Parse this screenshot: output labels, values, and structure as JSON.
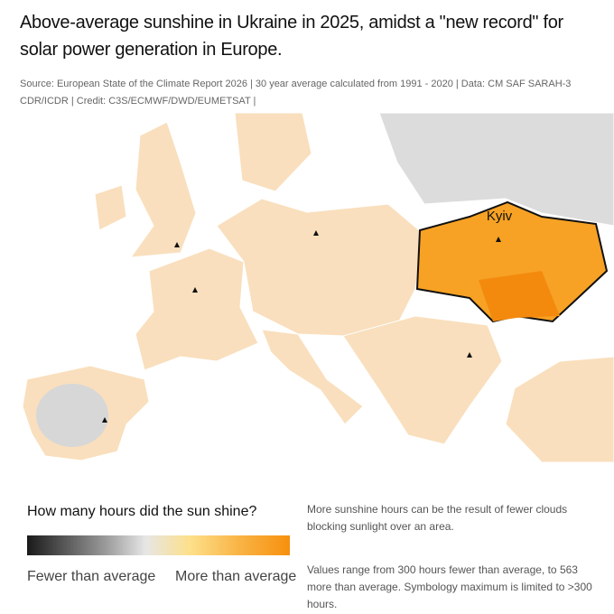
{
  "header": {
    "title": "Above-average sunshine in Ukraine in 2025, amidst a \"new record\" for solar power generation in Europe.",
    "subtitle": "Source: European State of the Climate Report 2026 | 30 year average calculated from 1991 - 2020 | Data: CM SAF SARAH-3 CDR/ICDR | Credit: C3S/ECMWF/DWD/EUMETSAT |"
  },
  "map": {
    "label": "Kyiv"
  },
  "legend": {
    "title": "How many hours did the sun shine?",
    "low": "Fewer than average",
    "high": "More than average"
  },
  "notes": [
    "More sunshine hours can be the result of fewer clouds blocking sunlight over an area.",
    "Values range from 300 hours fewer than average, to 563 more than average. Symbology maximum is limited to >300 hours."
  ]
}
